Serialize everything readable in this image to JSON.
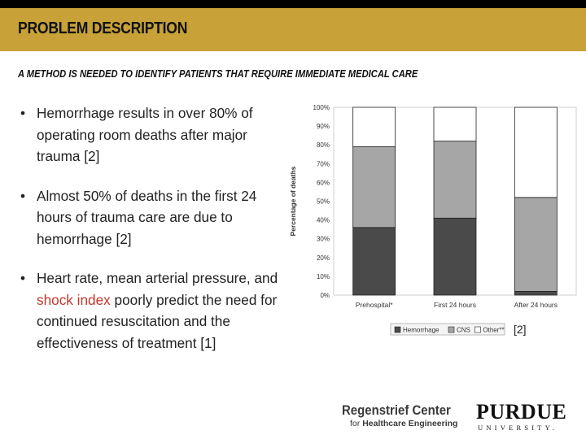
{
  "header": {
    "title": "PROBLEM DESCRIPTION"
  },
  "subtitle": "A METHOD IS NEEDED TO IDENTIFY PATIENTS THAT REQUIRE IMMEDIATE MEDICAL CARE",
  "bullets": [
    {
      "text": "Hemorrhage results in over 80% of operating room deaths after major trauma [2]"
    },
    {
      "text": "Almost 50% of deaths in the first 24 hours of trauma care are due to hemorrhage [2]"
    },
    {
      "text_before": "Heart rate, mean arterial pressure, and ",
      "highlight": "shock index",
      "text_after": " poorly predict the need for continued resuscitation and the effectiveness of treatment [1]"
    }
  ],
  "chart_data": {
    "type": "bar",
    "stacked": true,
    "categories": [
      "Prehospital*",
      "First 24 hours",
      "After 24 hours"
    ],
    "series": [
      {
        "name": "Hemorrhage",
        "color": "#4a4a4a",
        "values": [
          36,
          41,
          2
        ]
      },
      {
        "name": "CNS",
        "color": "#a6a6a6",
        "values": [
          43,
          41,
          50
        ]
      },
      {
        "name": "Other**",
        "color": "#ffffff",
        "values": [
          21,
          18,
          48
        ]
      }
    ],
    "ylabel": "Percentage of deaths",
    "yticks": [
      "0%",
      "10%",
      "20%",
      "30%",
      "40%",
      "50%",
      "60%",
      "70%",
      "80%",
      "90%",
      "100%"
    ],
    "ylim": [
      0,
      100
    ],
    "legend_position": "bottom"
  },
  "reference": "[2]",
  "logos": {
    "regenstrief_title": "Regenstrief Center",
    "regenstrief_for": "for",
    "regenstrief_sub": "Healthcare Engineering",
    "purdue": "PURDUE",
    "purdue_sub": "UNIVERSITY."
  },
  "colors": {
    "header": "#c8a238",
    "top_bar": "#000000",
    "highlight": "#c0392b"
  }
}
